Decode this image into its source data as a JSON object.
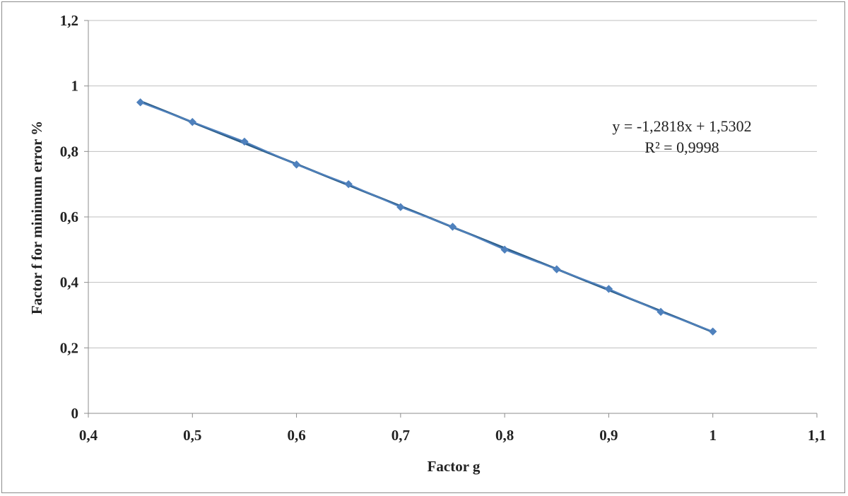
{
  "chart_data": {
    "type": "scatter",
    "title": "",
    "xlabel": "Factor g",
    "ylabel": "Factor f for minimum error %",
    "xlim": [
      0.4,
      1.1
    ],
    "ylim": [
      0,
      1.2
    ],
    "x_ticks": [
      0.4,
      0.5,
      0.6,
      0.7,
      0.8,
      0.9,
      1.0,
      1.1
    ],
    "x_tick_labels": [
      "0,4",
      "0,5",
      "0,6",
      "0,7",
      "0,8",
      "0,9",
      "1",
      "1,1"
    ],
    "y_ticks": [
      0,
      0.2,
      0.4,
      0.6,
      0.8,
      1.0,
      1.2
    ],
    "y_tick_labels": [
      "0",
      "0,2",
      "0,4",
      "0,6",
      "0,8",
      "1",
      "1,2"
    ],
    "grid": "horizontal",
    "series": [
      {
        "x": [
          0.45,
          0.5,
          0.55,
          0.6,
          0.65,
          0.7,
          0.75,
          0.8,
          0.85,
          0.9,
          0.95,
          1.0
        ],
        "y": [
          0.95,
          0.89,
          0.83,
          0.76,
          0.7,
          0.63,
          0.57,
          0.5,
          0.44,
          0.38,
          0.31,
          0.25
        ],
        "marker": "diamond",
        "color": "#4f81bd"
      }
    ],
    "trendline": {
      "type": "linear",
      "slope": -1.2818,
      "intercept": 1.5302,
      "color": "#2e5f8a",
      "equation": "y = -1,2818x + 1,5302",
      "r_squared": "R² = 0,9998"
    }
  }
}
